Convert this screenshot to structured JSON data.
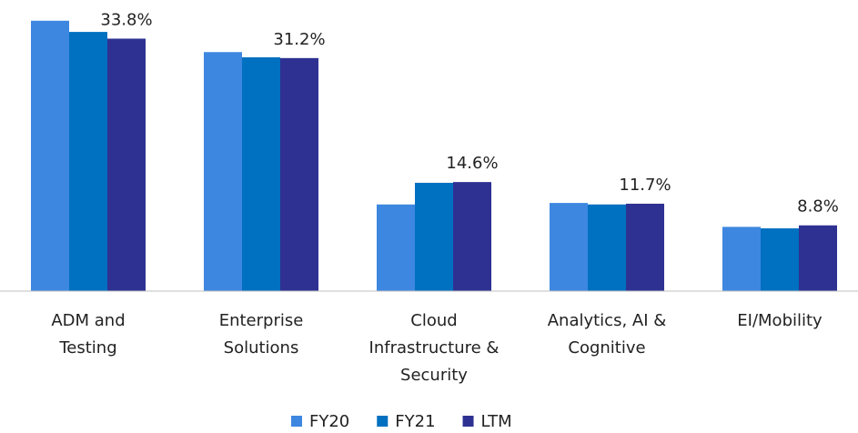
{
  "chart_data": {
    "type": "bar",
    "categories": [
      "ADM and Testing",
      "Enterprise Solutions",
      "Cloud Infrastructure & Security",
      "Analytics, AI & Cognitive",
      "EI/Mobility"
    ],
    "series": [
      {
        "name": "FY20",
        "color": "#3d87e0",
        "values": [
          36.2,
          32.0,
          11.6,
          11.8,
          8.6
        ]
      },
      {
        "name": "FY21",
        "color": "#0070c0",
        "values": [
          34.7,
          31.3,
          14.5,
          11.6,
          8.4
        ]
      },
      {
        "name": "LTM",
        "color": "#2e3192",
        "values": [
          33.8,
          31.2,
          14.6,
          11.7,
          8.8
        ],
        "value_labels": [
          "33.8%",
          "31.2%",
          "14.6%",
          "11.7%",
          "8.8%"
        ]
      }
    ],
    "ylim": [
      0,
      38
    ],
    "legend": "bottom"
  }
}
